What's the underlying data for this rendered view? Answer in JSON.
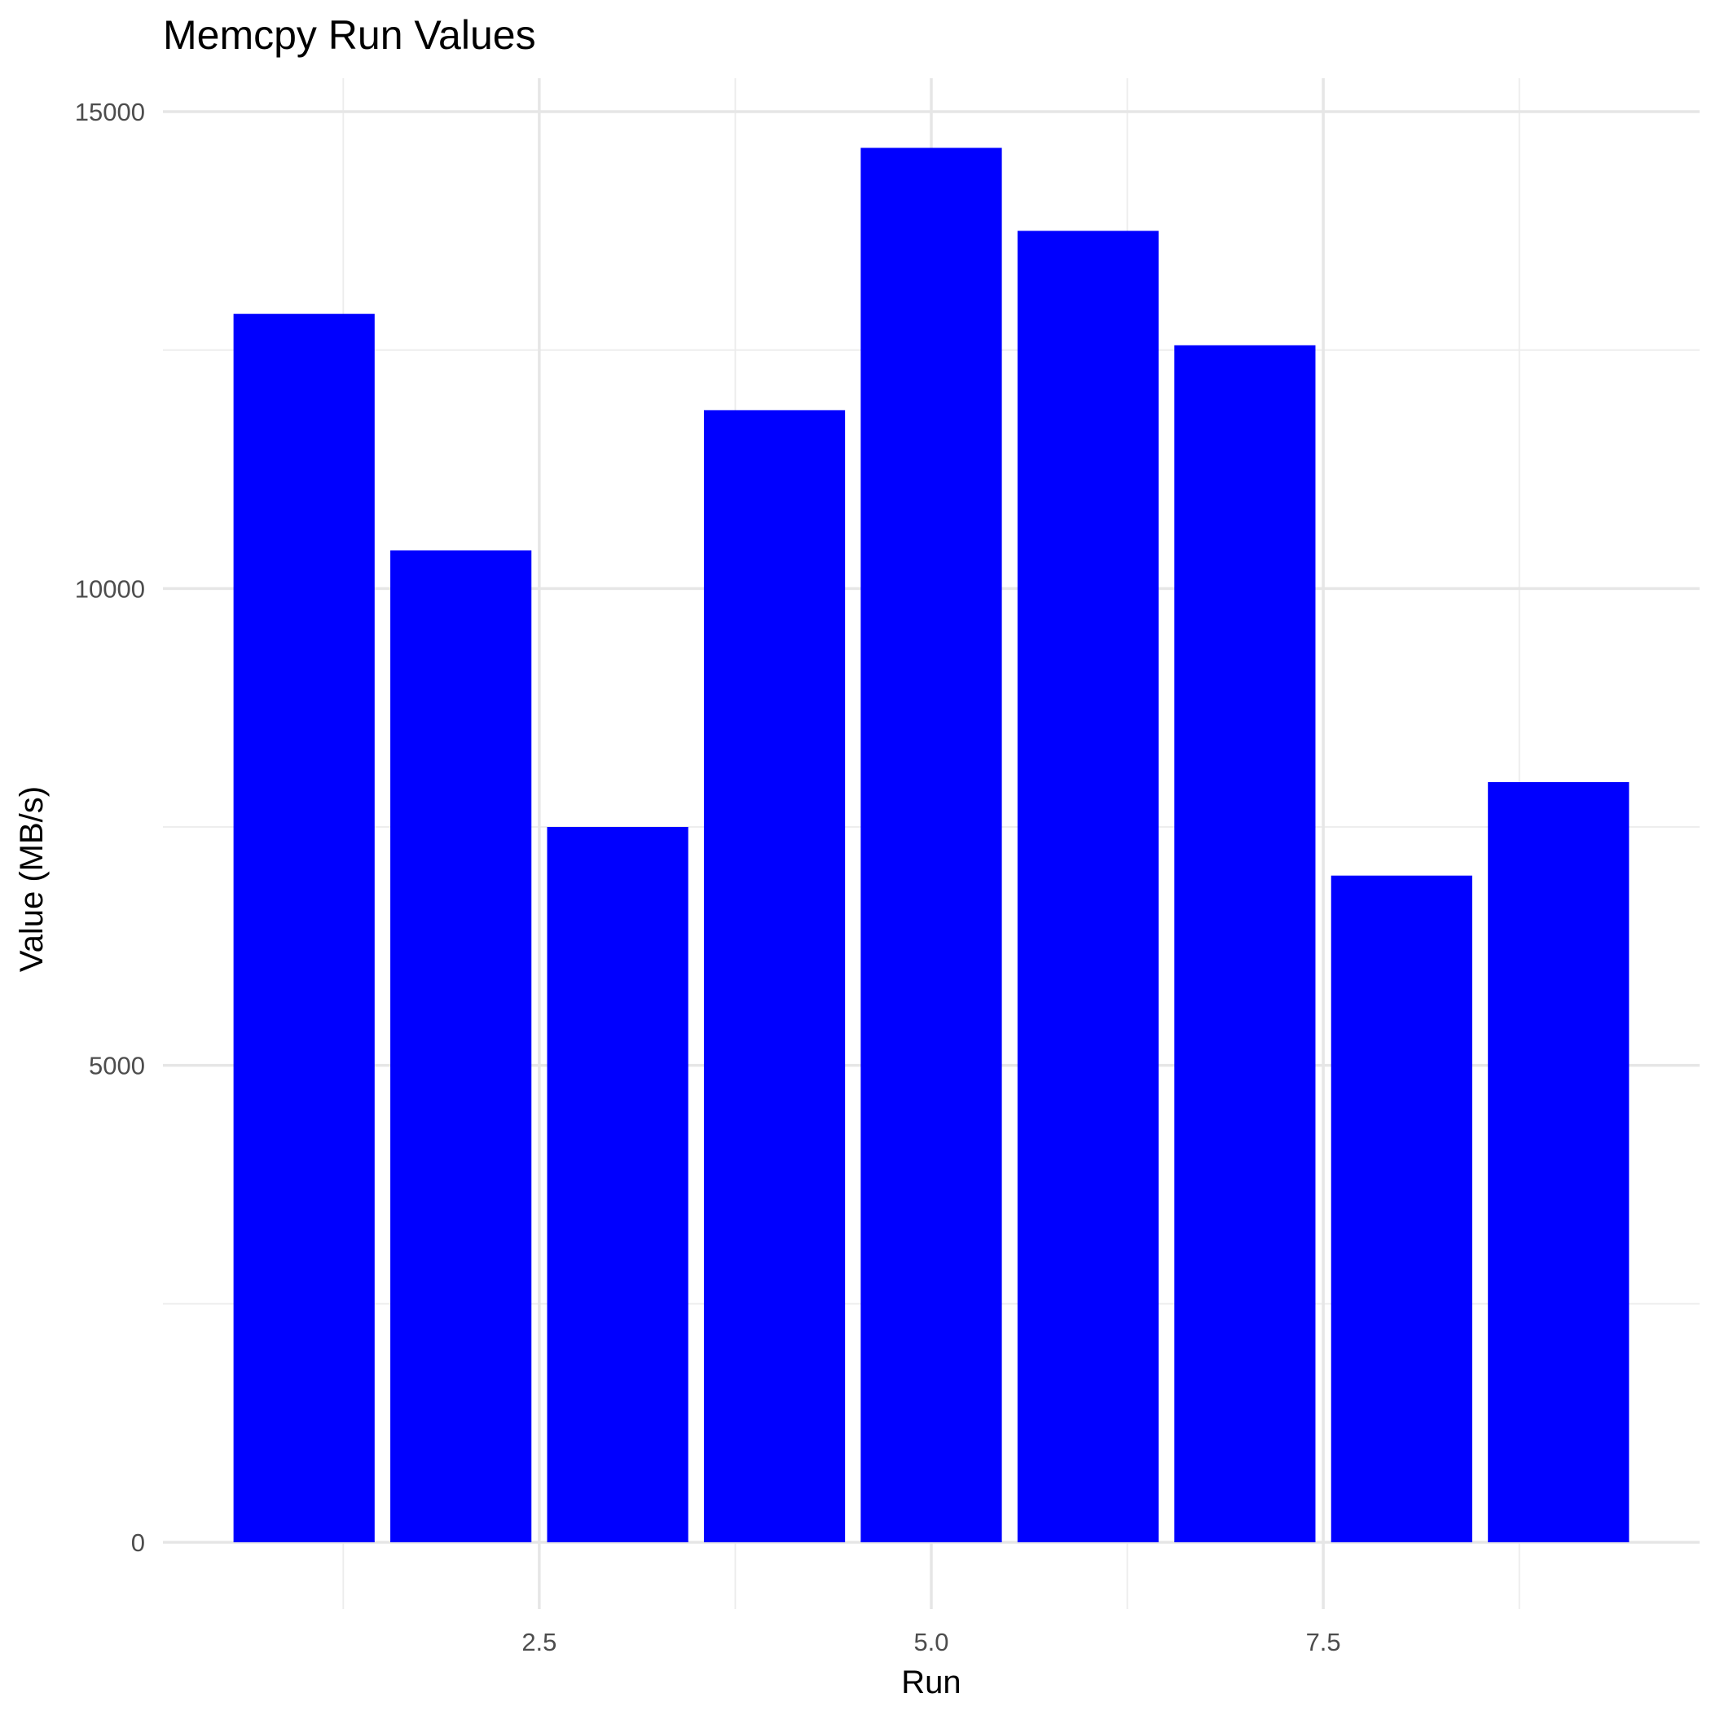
{
  "chart_data": {
    "type": "bar",
    "title": "Memcpy Run Values",
    "xlabel": "Run",
    "ylabel": "Value (MB/s)",
    "x": [
      1,
      2,
      3,
      4,
      5,
      6,
      7,
      8,
      9
    ],
    "values": [
      12880,
      10400,
      7500,
      11870,
      14620,
      13750,
      12550,
      6990,
      7970
    ],
    "bar_width": 0.9,
    "xlim": [
      0.1,
      9.9
    ],
    "ylim": [
      0,
      15000
    ],
    "x_ticks": [
      2.5,
      5.0,
      7.5
    ],
    "x_tick_labels": [
      "2.5",
      "5.0",
      "7.5"
    ],
    "x_minor_ticks": [
      1.25,
      3.75,
      6.25,
      8.75
    ],
    "y_ticks": [
      0,
      5000,
      10000,
      15000
    ],
    "y_tick_labels": [
      "0",
      "5000",
      "10000",
      "15000"
    ],
    "y_minor_ticks": [
      2500,
      7500,
      12500
    ],
    "grid": true,
    "legend": "none",
    "colors": {
      "bar": "#0000ff",
      "grid": "#e6e6e6",
      "tick_text": "#4d4d4d",
      "text": "#000000",
      "background": "#ffffff"
    }
  }
}
